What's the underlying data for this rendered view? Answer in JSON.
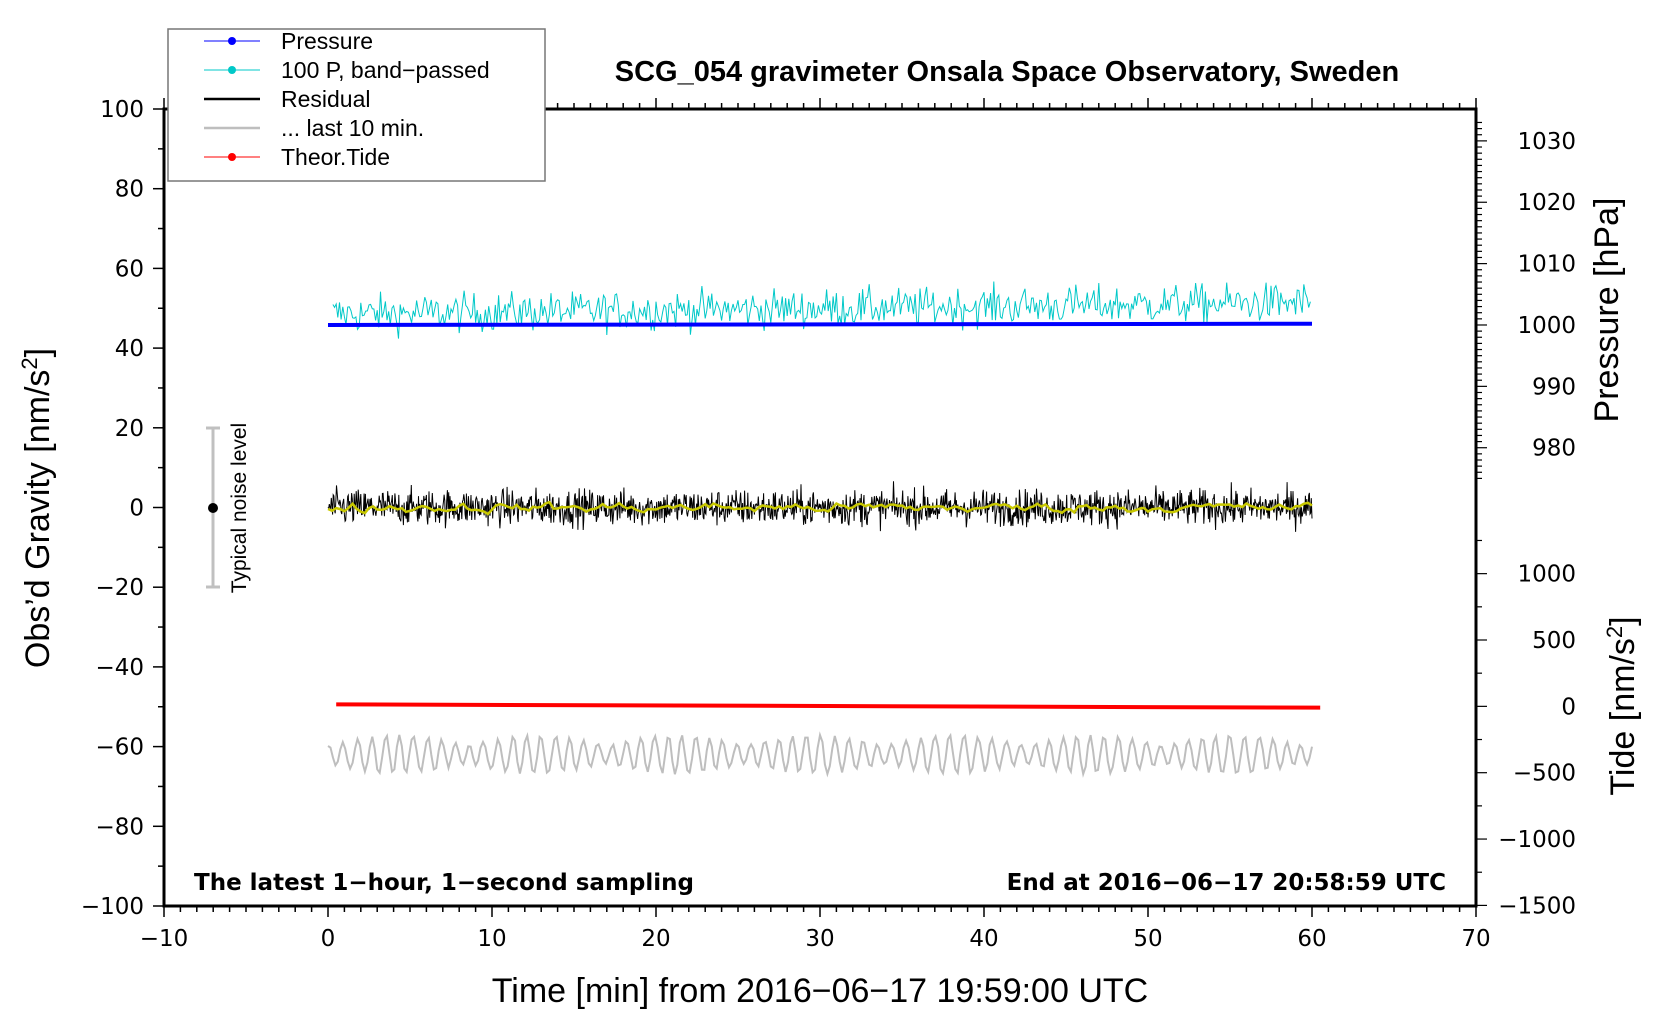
{
  "chart_data": {
    "type": "line",
    "title": "SCG_054 gravimeter Onsala Space Observatory, Sweden",
    "xlabel": "Time [min] from 2016−06−17 19:59:00 UTC",
    "ylabel": {
      "pre": "Obs’d Gravity [nm/s",
      "sup": "2",
      "post": "]"
    },
    "y2_pressure_label": "Pressure [hPa]",
    "y2_tide_label": {
      "pre": "Tide [nm/s",
      "sup": "2",
      "post": "]"
    },
    "xlim": [
      -10,
      70
    ],
    "ylim": [
      -100,
      100
    ],
    "x_ticks": [
      -10,
      0,
      10,
      20,
      30,
      40,
      50,
      60,
      70
    ],
    "x_tick_labels": [
      "−10",
      "0",
      "10",
      "20",
      "30",
      "40",
      "50",
      "60",
      "70"
    ],
    "y_ticks": [
      -100,
      -80,
      -60,
      -40,
      -20,
      0,
      20,
      40,
      60,
      80,
      100
    ],
    "y_tick_labels": [
      "−100",
      "−80",
      "−60",
      "−40",
      "−20",
      "0",
      "20",
      "40",
      "60",
      "80",
      "100"
    ],
    "pressure_ticks": [
      980,
      990,
      1000,
      1010,
      1020,
      1030
    ],
    "pressure_tick_labels": [
      "980",
      "990",
      "1000",
      "1010",
      "1020",
      "1030"
    ],
    "tide_ticks": [
      -1500,
      -1000,
      -500,
      0,
      500,
      1000
    ],
    "tide_tick_labels": [
      "−1500",
      "−1000",
      "−500",
      "0",
      "500",
      "1000"
    ],
    "legend": {
      "placement": "top-left",
      "entries": [
        {
          "label": "Pressure",
          "color": "#0000ff",
          "marker": true
        },
        {
          "label": "100 P, band−passed",
          "color": "#00c8c8",
          "marker": true
        },
        {
          "label": "Residual",
          "color": "#000000",
          "marker": false
        },
        {
          "label": "... last 10 min.",
          "color": "#bebebe",
          "marker": false
        },
        {
          "label": "Theor.Tide",
          "color": "#ff0000",
          "marker": true
        }
      ]
    },
    "series": [
      {
        "name": "Pressure",
        "unit": "hPa",
        "x_range": [
          0,
          60
        ],
        "start": 1000.0,
        "end": 1000.2,
        "color": "#0000ff"
      },
      {
        "name": "100 P, band-passed",
        "unit": "nm/s2",
        "x_range": [
          0.3,
          60
        ],
        "mean_start": 48.5,
        "mean_end": 51.5,
        "amplitude": 4,
        "color": "#00c8c8"
      },
      {
        "name": "Residual",
        "unit": "nm/s2",
        "x_range": [
          0,
          60
        ],
        "mean": 0,
        "amplitude": 5,
        "color": "#000000",
        "smoothed_color": "#c8c800"
      },
      {
        "name": "... last 10 min.",
        "unit": "nm/s2",
        "x_range": [
          0,
          60
        ],
        "mean": -62,
        "amplitude": 4.5,
        "color": "#bebebe"
      },
      {
        "name": "Theor.Tide",
        "unit": "nm/s2",
        "x_range": [
          0.5,
          60.5
        ],
        "start": 15,
        "end": -10,
        "color": "#ff0000"
      }
    ],
    "noise_bar": {
      "label": "Typical noise level",
      "x": -7,
      "center": 0,
      "range": [
        -20,
        20
      ]
    },
    "annotations": {
      "left": "The latest 1−hour, 1−second sampling",
      "right": "End at 2016−06−17 20:58:59 UTC"
    }
  }
}
